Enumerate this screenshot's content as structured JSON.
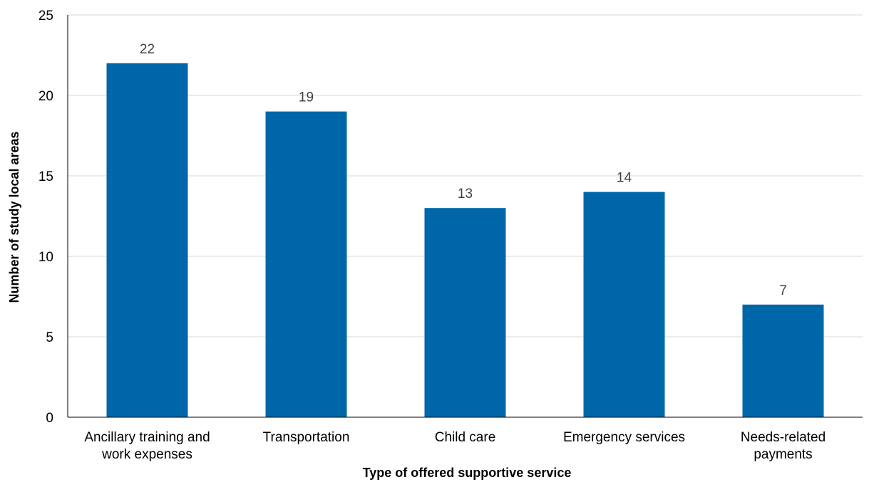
{
  "chart_data": {
    "type": "bar",
    "title": "",
    "xlabel": "Type of offered supportive service",
    "ylabel": "Number of study local areas",
    "categories": [
      [
        "Ancillary training and",
        "work expenses"
      ],
      [
        "Transportation"
      ],
      [
        "Child care"
      ],
      [
        "Emergency services"
      ],
      [
        "Needs-related",
        "payments"
      ]
    ],
    "values": [
      22,
      19,
      13,
      14,
      7
    ],
    "ylim": [
      0,
      25
    ],
    "yticks": [
      0,
      5,
      10,
      15,
      20,
      25
    ],
    "grid": true,
    "legend": "none",
    "bar_color": "#0066aa"
  }
}
